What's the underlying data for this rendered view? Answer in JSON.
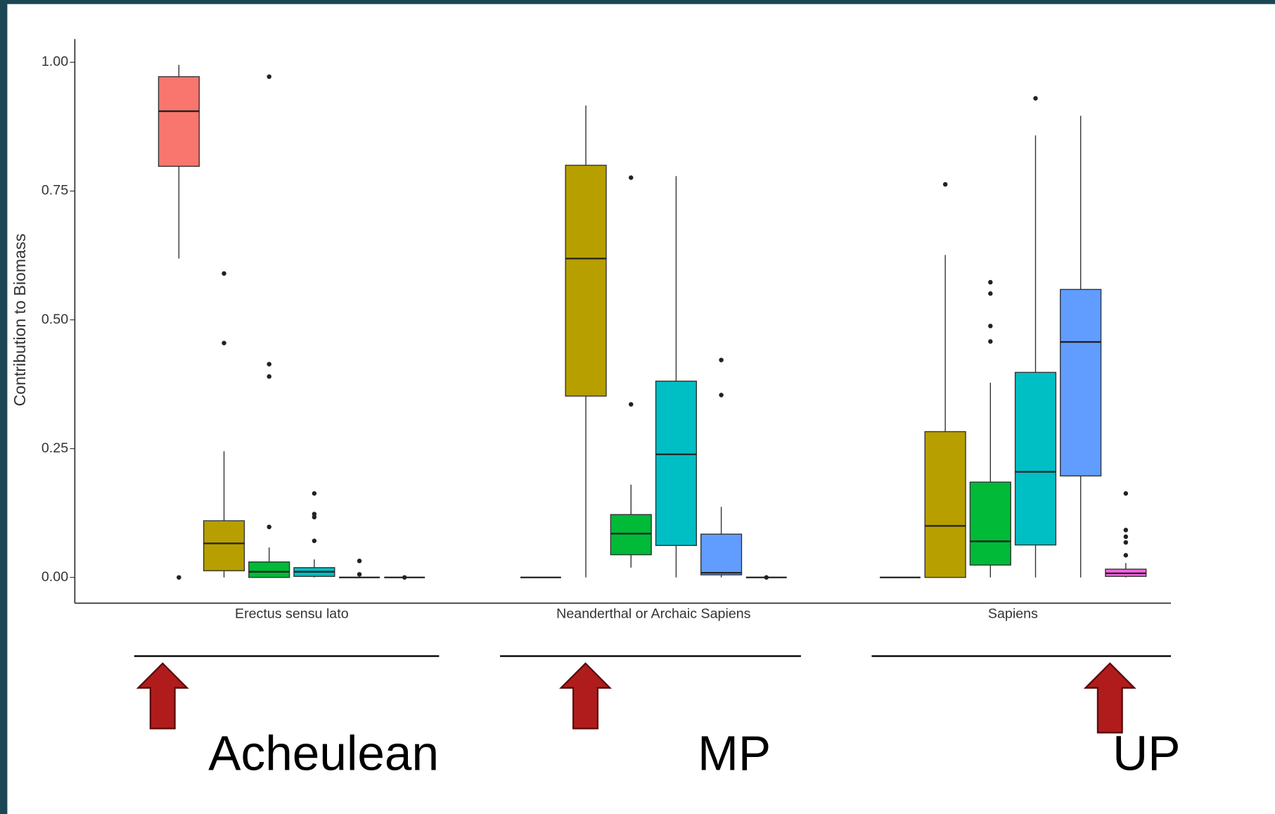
{
  "chart_data": {
    "type": "box",
    "ylabel": "Contribution to Biomass",
    "ylim": [
      -0.05,
      1.045
    ],
    "yticks": [
      {
        "value": 0,
        "label": "0.00"
      },
      {
        "value": 0.25,
        "label": "0.25"
      },
      {
        "value": 0.5,
        "label": "0.50"
      },
      {
        "value": 0.75,
        "label": "0.75"
      },
      {
        "value": 1,
        "label": "1.00"
      }
    ],
    "periods": [
      "Acheulean",
      "MP",
      "UP"
    ],
    "groups": [
      {
        "name": "Erectus sensu lato",
        "boxes": [
          {
            "color": "#f8766d",
            "low": 0.619,
            "q1": 0.798,
            "median": 0.905,
            "q3": 0.972,
            "high": 0.995,
            "outliers": [
              0
            ]
          },
          {
            "color": "#b79f00",
            "low": 0,
            "q1": 0.013,
            "median": 0.066,
            "q3": 0.11,
            "high": 0.245,
            "outliers": [
              0.455,
              0.59
            ]
          },
          {
            "color": "#00ba38",
            "low": 0,
            "q1": 0,
            "median": 0.011,
            "q3": 0.03,
            "high": 0.058,
            "outliers": [
              0.098,
              0.39,
              0.414,
              0.972
            ]
          },
          {
            "color": "#00bfc4",
            "low": 0,
            "q1": 0.002,
            "median": 0.011,
            "q3": 0.019,
            "high": 0.035,
            "outliers": [
              0.071,
              0.117,
              0.123,
              0.163
            ]
          },
          {
            "color": "#619cff",
            "low": 0,
            "q1": 0,
            "median": 0,
            "q3": 0,
            "high": 0,
            "outliers": [
              0.006,
              0.032
            ]
          },
          {
            "color": "#f564e3",
            "low": 0,
            "q1": 0,
            "median": 0,
            "q3": 0,
            "high": 0,
            "outliers": [
              0
            ]
          }
        ]
      },
      {
        "name": "Neanderthal or Archaic Sapiens",
        "boxes": [
          {
            "color": "#f8766d",
            "low": 0,
            "q1": 0,
            "median": 0,
            "q3": 0,
            "high": 0,
            "outliers": []
          },
          {
            "color": "#b79f00",
            "low": 0,
            "q1": 0.352,
            "median": 0.619,
            "q3": 0.8,
            "high": 0.916,
            "outliers": []
          },
          {
            "color": "#00ba38",
            "low": 0.019,
            "q1": 0.044,
            "median": 0.085,
            "q3": 0.122,
            "high": 0.18,
            "outliers": [
              0.336,
              0.776
            ]
          },
          {
            "color": "#00bfc4",
            "low": 0,
            "q1": 0.062,
            "median": 0.239,
            "q3": 0.381,
            "high": 0.779,
            "outliers": []
          },
          {
            "color": "#619cff",
            "low": 0,
            "q1": 0.005,
            "median": 0.009,
            "q3": 0.084,
            "high": 0.137,
            "outliers": [
              0.354,
              0.422
            ]
          },
          {
            "color": "#f564e3",
            "low": 0,
            "q1": 0,
            "median": 0,
            "q3": 0,
            "high": 0,
            "outliers": [
              0
            ]
          }
        ]
      },
      {
        "name": "Sapiens",
        "boxes": [
          {
            "color": "#f8766d",
            "low": 0,
            "q1": 0,
            "median": 0,
            "q3": 0,
            "high": 0,
            "outliers": []
          },
          {
            "color": "#b79f00",
            "low": 0,
            "q1": 0,
            "median": 0.1,
            "q3": 0.283,
            "high": 0.626,
            "outliers": [
              0.763
            ]
          },
          {
            "color": "#00ba38",
            "low": 0,
            "q1": 0.024,
            "median": 0.07,
            "q3": 0.185,
            "high": 0.378,
            "outliers": [
              0.458,
              0.488,
              0.551,
              0.573
            ]
          },
          {
            "color": "#00bfc4",
            "low": 0,
            "q1": 0.063,
            "median": 0.205,
            "q3": 0.398,
            "high": 0.858,
            "outliers": [
              0.93
            ]
          },
          {
            "color": "#619cff",
            "low": 0,
            "q1": 0.197,
            "median": 0.457,
            "q3": 0.559,
            "high": 0.896,
            "outliers": []
          },
          {
            "color": "#f564e3",
            "low": 0,
            "q1": 0.002,
            "median": 0.008,
            "q3": 0.016,
            "high": 0.028,
            "outliers": [
              0.043,
              0.068,
              0.079,
              0.092,
              0.163
            ]
          }
        ]
      }
    ]
  }
}
